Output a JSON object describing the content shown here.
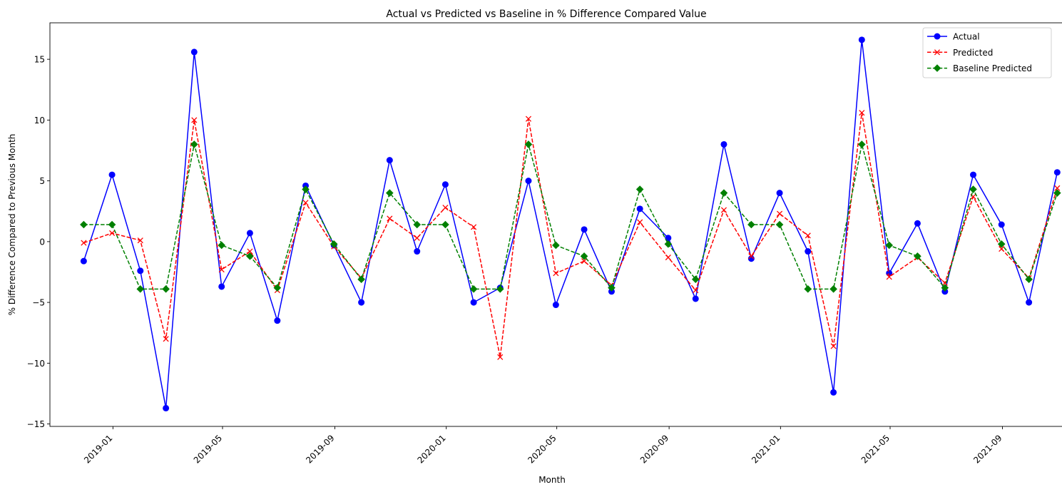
{
  "chart_data": {
    "type": "line",
    "title": "Actual vs Predicted vs Baseline in % Difference Compared Value",
    "xlabel": "Month",
    "ylabel": "% Difference Compared to Previous Month",
    "x": [
      "2018-11-30",
      "2018-12-31",
      "2019-01-31",
      "2019-02-28",
      "2019-03-31",
      "2019-04-30",
      "2019-05-31",
      "2019-06-30",
      "2019-07-31",
      "2019-08-31",
      "2019-09-30",
      "2019-10-31",
      "2019-11-30",
      "2019-12-31",
      "2020-01-31",
      "2020-02-29",
      "2020-03-31",
      "2020-04-30",
      "2020-05-31",
      "2020-06-30",
      "2020-07-31",
      "2020-08-31",
      "2020-09-30",
      "2020-10-31",
      "2020-11-30",
      "2020-12-31",
      "2021-01-31",
      "2021-02-28",
      "2021-03-31",
      "2021-04-30",
      "2021-05-31",
      "2021-06-30",
      "2021-07-31",
      "2021-08-31",
      "2021-09-30",
      "2021-10-31"
    ],
    "xlim": [
      "2018-10-24",
      "2021-11-06"
    ],
    "ylim": [
      -15.2,
      18.0
    ],
    "x_ticks": [
      "2019-01",
      "2019-05",
      "2019-09",
      "2020-01",
      "2020-05",
      "2020-09",
      "2021-01",
      "2021-05",
      "2021-09"
    ],
    "y_ticks": [
      -15,
      -10,
      -5,
      0,
      5,
      10,
      15
    ],
    "x_tick_rotation": 45,
    "grid": false,
    "legend_position": "top-right",
    "series": [
      {
        "name": "Actual",
        "color": "#0000ff",
        "marker": "circle",
        "dash": "solid",
        "values": [
          -1.6,
          5.5,
          -2.4,
          -13.7,
          15.6,
          -3.7,
          0.7,
          -6.5,
          4.6,
          -0.3,
          -5.0,
          6.7,
          -0.8,
          4.7,
          -5.0,
          -3.8,
          5.0,
          -5.2,
          1.0,
          -4.1,
          2.7,
          0.3,
          -4.7,
          8.0,
          -1.4,
          4.0,
          -0.8,
          -12.4,
          16.6,
          -2.6,
          1.5,
          -4.1,
          5.5,
          1.4,
          -5.0,
          5.7
        ]
      },
      {
        "name": "Predicted",
        "color": "#ff0000",
        "marker": "x",
        "dash": "dashed",
        "values": [
          -0.1,
          0.7,
          0.1,
          -8.0,
          10.0,
          -2.3,
          -0.8,
          -4.0,
          3.2,
          -0.4,
          -3.0,
          1.9,
          0.3,
          2.8,
          1.2,
          -9.5,
          10.1,
          -2.6,
          -1.6,
          -3.6,
          1.6,
          -1.3,
          -4.0,
          2.6,
          -1.2,
          2.3,
          0.5,
          -8.6,
          10.6,
          -2.9,
          -1.3,
          -3.4,
          3.7,
          -0.6,
          -3.0,
          4.4
        ]
      },
      {
        "name": "Baseline Predicted",
        "color": "#008000",
        "marker": "diamond",
        "dash": "dashed",
        "values": [
          1.4,
          1.4,
          -3.9,
          -3.9,
          8.0,
          -0.3,
          -1.2,
          -3.8,
          4.3,
          -0.2,
          -3.1,
          4.0,
          1.4,
          1.4,
          -3.9,
          -3.9,
          8.0,
          -0.3,
          -1.2,
          -3.8,
          4.3,
          -0.2,
          -3.1,
          4.0,
          1.4,
          1.4,
          -3.9,
          -3.9,
          8.0,
          -0.3,
          -1.2,
          -3.8,
          4.3,
          -0.2,
          -3.1,
          4.0
        ]
      }
    ]
  }
}
